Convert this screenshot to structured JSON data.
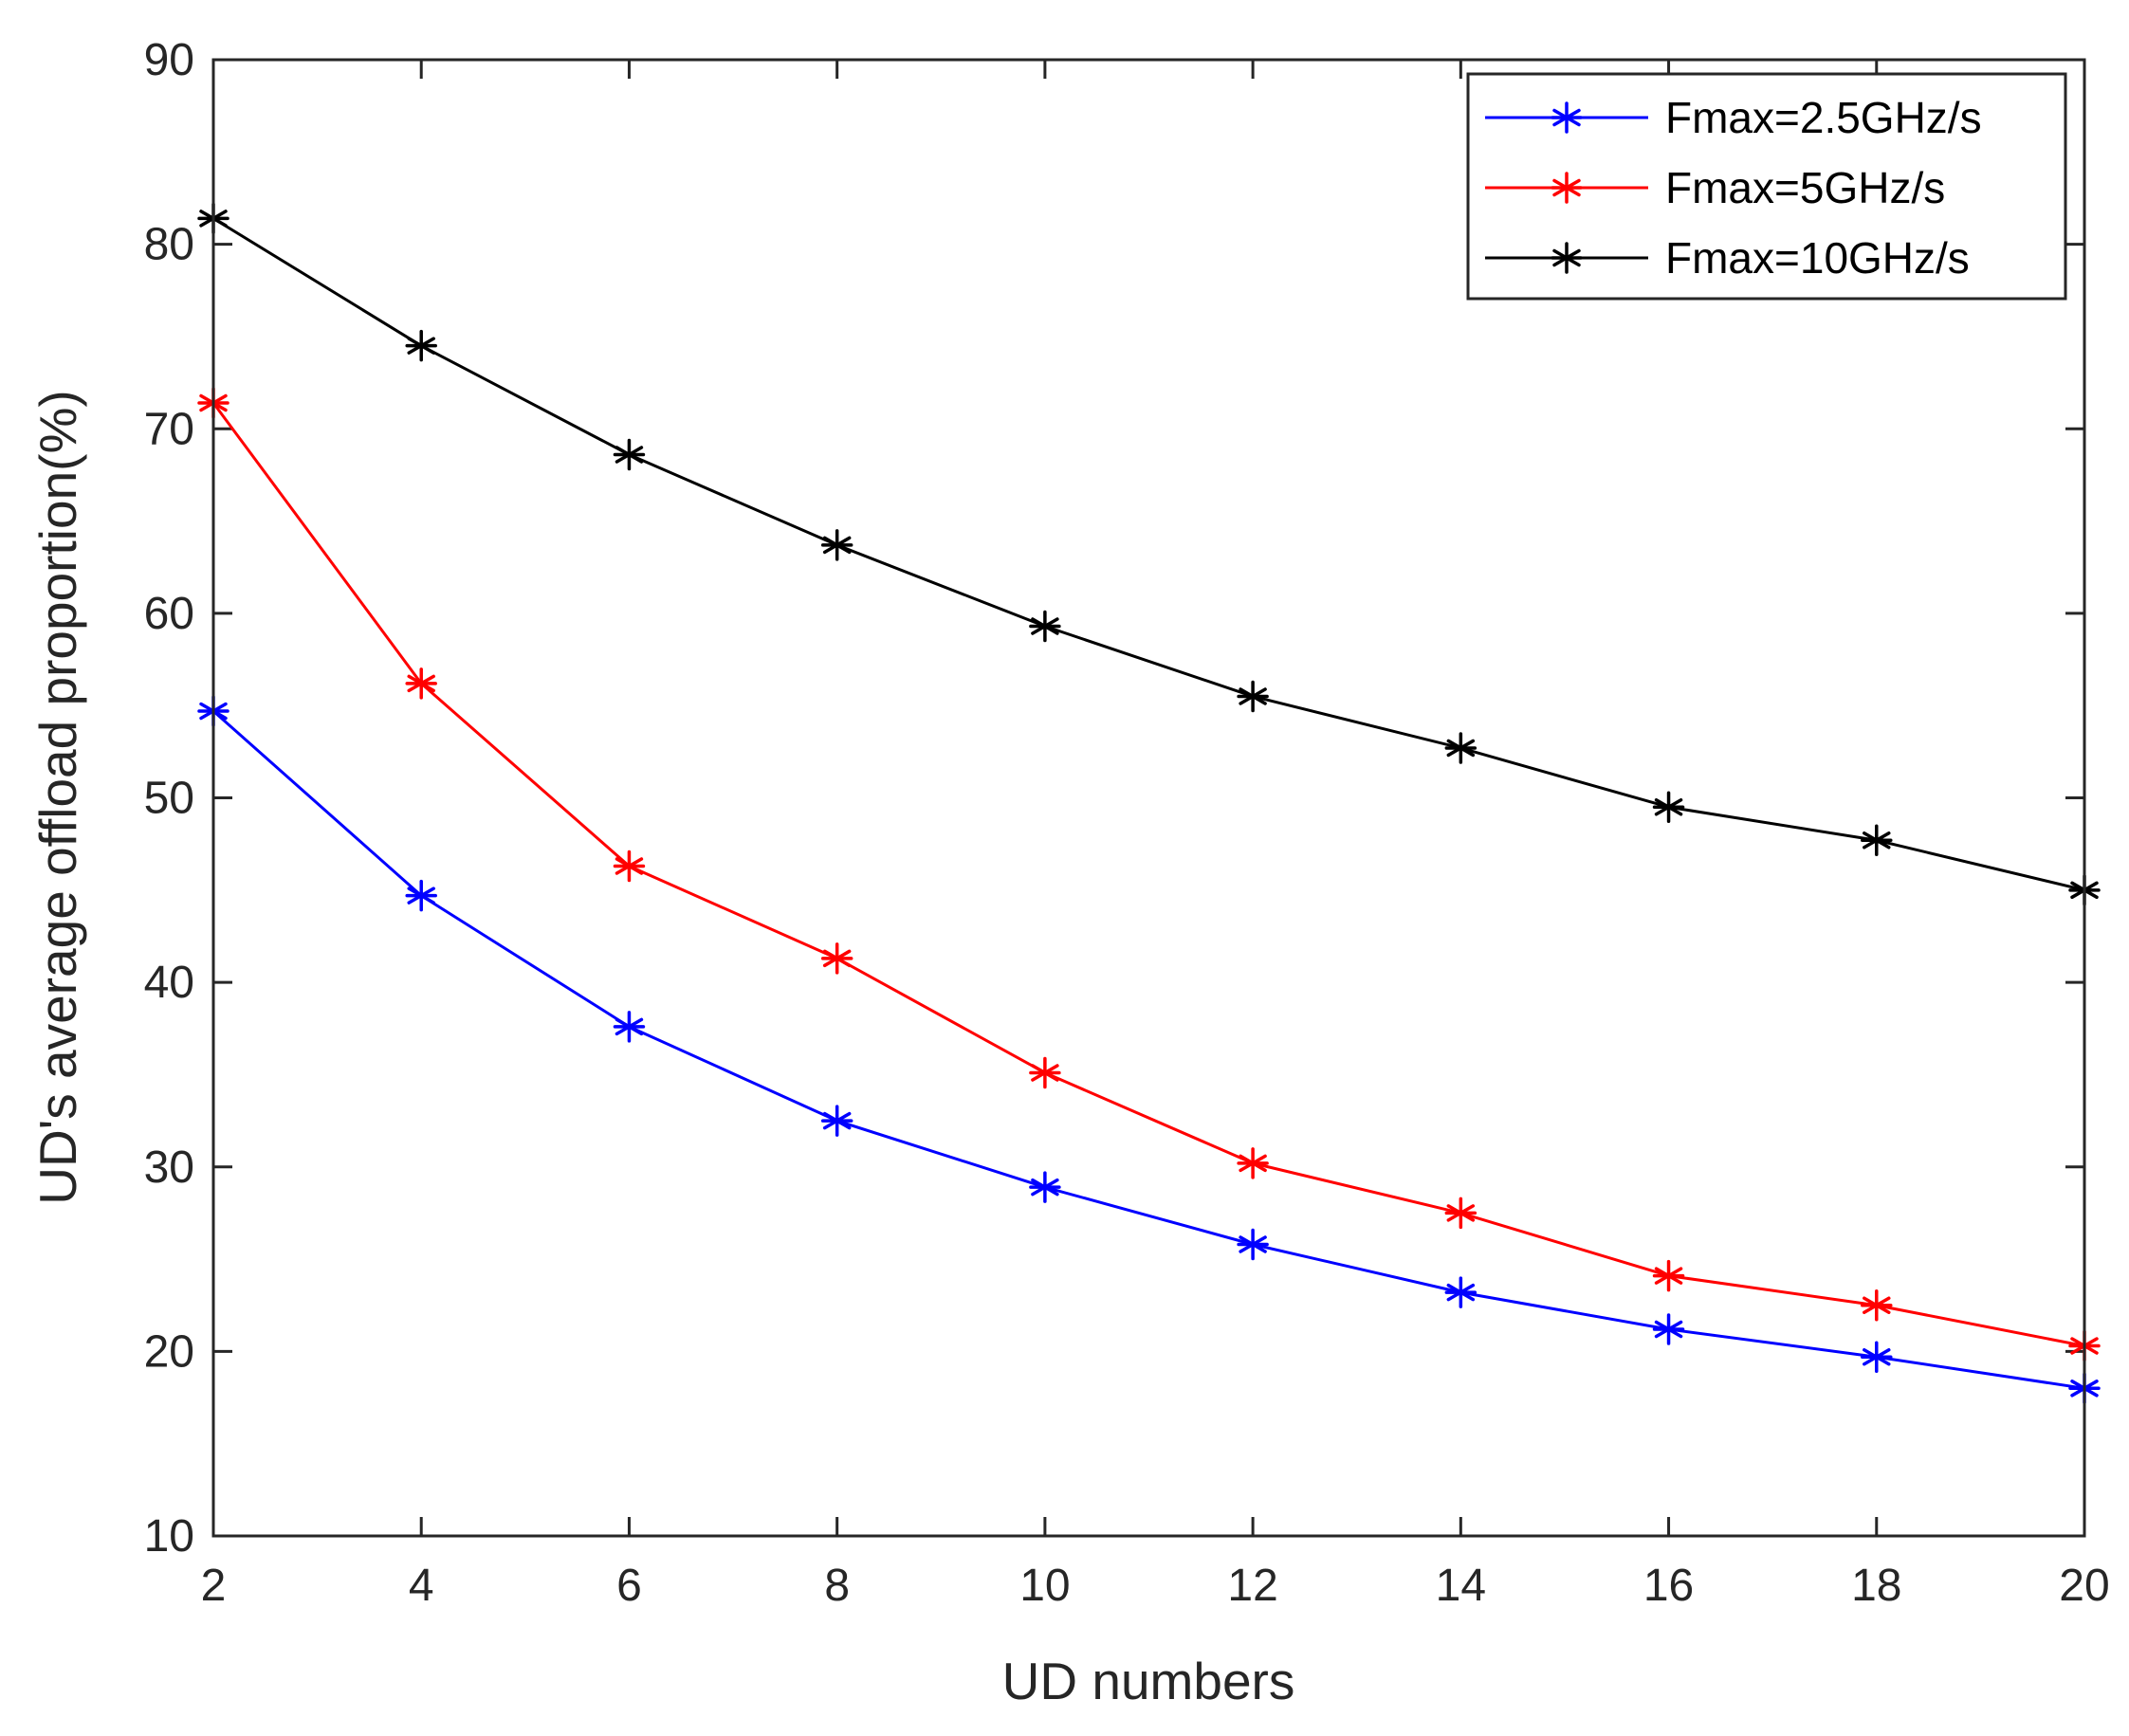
{
  "chart_data": {
    "type": "line",
    "title": "",
    "xlabel": "UD numbers",
    "ylabel": "UD's average offload proportion(%)",
    "xlim": [
      2,
      20
    ],
    "ylim": [
      10,
      90
    ],
    "xticks": [
      "2",
      "4",
      "6",
      "8",
      "10",
      "12",
      "14",
      "16",
      "18",
      "20"
    ],
    "yticks": [
      "10",
      "20",
      "30",
      "40",
      "50",
      "60",
      "70",
      "80",
      "90"
    ],
    "x": [
      2,
      4,
      6,
      8,
      10,
      12,
      14,
      16,
      18,
      20
    ],
    "legend_position": "top-right",
    "grid": false,
    "series": [
      {
        "name": "Fmax=2.5GHz/s",
        "color": "#0000ff",
        "marker": "asterisk",
        "values": [
          54.7,
          44.7,
          37.6,
          32.5,
          28.9,
          25.8,
          23.2,
          21.2,
          19.7,
          18.0
        ]
      },
      {
        "name": "Fmax=5GHz/s",
        "color": "#ff0000",
        "marker": "asterisk",
        "values": [
          71.4,
          56.2,
          46.3,
          41.3,
          35.1,
          30.2,
          27.5,
          24.1,
          22.5,
          20.3
        ]
      },
      {
        "name": "Fmax=10GHz/s",
        "color": "#000000",
        "marker": "asterisk",
        "values": [
          81.4,
          74.5,
          68.6,
          63.7,
          59.3,
          55.5,
          52.7,
          49.5,
          47.7,
          45.0
        ]
      }
    ]
  }
}
